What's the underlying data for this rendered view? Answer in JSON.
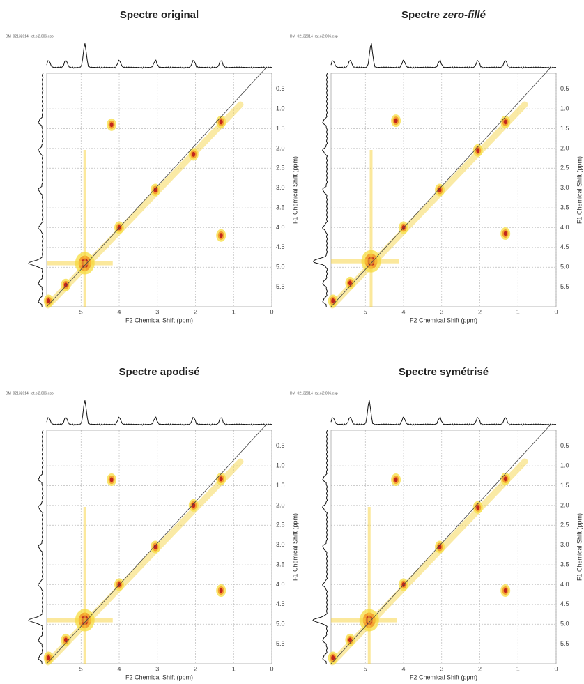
{
  "chart_data": [
    {
      "type": "contour",
      "title": "Spectre original",
      "file": "DM_02132014_rat.oj2.006.esp",
      "xlabel": "F2 Chemical Shift (ppm)",
      "ylabel": "F1 Chemical Shift (ppm)",
      "xlim": [
        5.9,
        0
      ],
      "ylim": [
        0.1,
        6.0
      ],
      "xticks": [
        5,
        4,
        3,
        2,
        1,
        0
      ],
      "yticks": [
        0.5,
        {
          "value": 1,
          "label": "1.0"
        },
        1.5,
        {
          "value": 2,
          "label": "2.0"
        },
        2.5,
        {
          "value": 3,
          "label": "3.0"
        },
        3.5,
        {
          "value": 4,
          "label": "4.0"
        },
        4.5,
        {
          "value": 5,
          "label": "5.0"
        },
        5.5
      ],
      "peaks": {
        "x": [
          4.9,
          1.33,
          2.05,
          3.05,
          4.0,
          5.4,
          5.85,
          4.2,
          1.33
        ],
        "y": [
          4.9,
          1.33,
          2.15,
          3.05,
          4.0,
          5.45,
          5.85,
          1.4,
          4.2
        ]
      }
    },
    {
      "type": "contour",
      "title": "Spectre",
      "title_italic": "zero-fillé",
      "file": "DM_02132014_rat.oj2.006.esp",
      "xlabel": "F2 Chemical Shift (ppm)",
      "ylabel": "F1 Chemical Shift (ppm)",
      "xlim": [
        5.9,
        0
      ],
      "ylim": [
        0.1,
        6.0
      ],
      "xticks": [
        5,
        4,
        3,
        2,
        1,
        0
      ],
      "yticks": [
        0.5,
        {
          "value": 1,
          "label": "1.0"
        },
        1.5,
        {
          "value": 2,
          "label": "2.0"
        },
        2.5,
        {
          "value": 3,
          "label": "3.0"
        },
        3.5,
        {
          "value": 4,
          "label": "4.0"
        },
        4.5,
        {
          "value": 5,
          "label": "5.0"
        },
        5.5
      ],
      "peaks": {
        "x": [
          4.85,
          1.33,
          2.05,
          3.05,
          4.0,
          5.4,
          5.85,
          4.2,
          1.33
        ],
        "y": [
          4.85,
          1.33,
          2.05,
          3.05,
          4.0,
          5.4,
          5.85,
          1.3,
          4.15
        ]
      }
    },
    {
      "type": "contour",
      "title": "Spectre apodisé",
      "file": "DM_02132014_rat.oj2.006.esp",
      "xlabel": "F2 Chemical Shift (ppm)",
      "ylabel": "F1 Chemical Shift (ppm)",
      "xlim": [
        5.9,
        0
      ],
      "ylim": [
        0.1,
        6.0
      ],
      "xticks": [
        5,
        4,
        3,
        2,
        1,
        0
      ],
      "yticks": [
        0.5,
        {
          "value": 1,
          "label": "1.0"
        },
        1.5,
        {
          "value": 2,
          "label": "2.0"
        },
        2.5,
        {
          "value": 3,
          "label": "3.0"
        },
        3.5,
        {
          "value": 4,
          "label": "4.0"
        },
        4.5,
        {
          "value": 5,
          "label": "5.0"
        },
        5.5
      ],
      "peaks": {
        "x": [
          4.9,
          1.33,
          2.05,
          3.05,
          4.0,
          5.4,
          5.85,
          4.2,
          1.33
        ],
        "y": [
          4.9,
          1.33,
          2.0,
          3.05,
          4.0,
          5.4,
          5.85,
          1.35,
          4.15
        ]
      }
    },
    {
      "type": "contour",
      "title": "Spectre symétrisé",
      "file": "DM_02132014_rat.oj2.006.esp",
      "xlabel": "F2 Chemical Shift (ppm)",
      "ylabel": "F1 Chemical Shift (ppm)",
      "xlim": [
        5.9,
        0
      ],
      "ylim": [
        0.1,
        6.0
      ],
      "xticks": [
        5,
        4,
        3,
        2,
        1,
        0
      ],
      "yticks": [
        0.5,
        {
          "value": 1,
          "label": "1.0"
        },
        1.5,
        {
          "value": 2,
          "label": "2.0"
        },
        2.5,
        {
          "value": 3,
          "label": "3.0"
        },
        3.5,
        {
          "value": 4,
          "label": "4.0"
        },
        4.5,
        {
          "value": 5,
          "label": "5.0"
        },
        5.5
      ],
      "peaks": {
        "x": [
          4.9,
          1.33,
          2.05,
          3.05,
          4.0,
          5.4,
          5.85,
          4.2,
          1.33
        ],
        "y": [
          4.9,
          1.33,
          2.05,
          3.05,
          4.0,
          5.4,
          5.85,
          1.35,
          4.15
        ]
      }
    }
  ]
}
